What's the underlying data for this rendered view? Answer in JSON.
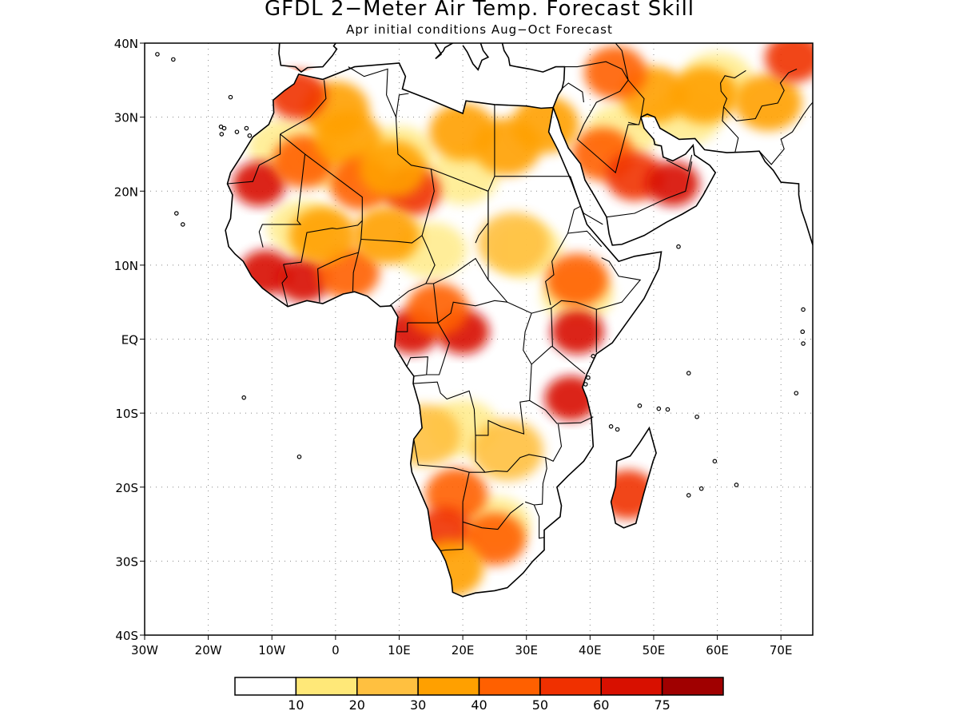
{
  "title": "GFDL 2−Meter Air Temp. Forecast Skill",
  "subtitle": "Apr initial conditions  Aug−Oct Forecast",
  "map": {
    "lon_range": [
      -30,
      75
    ],
    "lat_range": [
      -40,
      40
    ],
    "gridlines": "dotted",
    "lat_labels": [
      "40N",
      "30N",
      "20N",
      "10N",
      "EQ",
      "10S",
      "20S",
      "30S",
      "40S"
    ],
    "lon_labels": [
      "30W",
      "20W",
      "10W",
      "0",
      "10E",
      "20E",
      "30E",
      "40E",
      "50E",
      "60E",
      "70E"
    ]
  },
  "colorbar": {
    "colors": [
      "#ffffff",
      "#ffe878",
      "#ffc040",
      "#ffa000",
      "#ff6000",
      "#f03000",
      "#d81000",
      "#a00000"
    ],
    "labels": [
      "10",
      "20",
      "30",
      "40",
      "50",
      "60",
      "75"
    ]
  },
  "skill_regions": [
    {
      "lon": -12,
      "lat": 21,
      "level": 6
    },
    {
      "lon": -5,
      "lat": 24,
      "level": 4
    },
    {
      "lon": 2,
      "lat": 27,
      "level": 3
    },
    {
      "lon": 4,
      "lat": 21,
      "level": 4
    },
    {
      "lon": 12,
      "lat": 20,
      "level": 5
    },
    {
      "lon": 9,
      "lat": 23,
      "level": 3
    },
    {
      "lon": 20,
      "lat": 28,
      "level": 3
    },
    {
      "lon": 27,
      "lat": 26,
      "level": 3
    },
    {
      "lon": 0,
      "lat": 31,
      "level": 3
    },
    {
      "lon": -6,
      "lat": 33,
      "level": 5
    },
    {
      "lon": -11,
      "lat": 9,
      "level": 6
    },
    {
      "lon": -5,
      "lat": 8,
      "level": 6
    },
    {
      "lon": 2,
      "lat": 9,
      "level": 4
    },
    {
      "lon": -2,
      "lat": 14,
      "level": 3
    },
    {
      "lon": 8,
      "lat": 14,
      "level": 3
    },
    {
      "lon": 12,
      "lat": 1,
      "level": 6
    },
    {
      "lon": 20,
      "lat": 1,
      "level": 6
    },
    {
      "lon": 16,
      "lat": 4,
      "level": 4
    },
    {
      "lon": 38,
      "lat": 1,
      "level": 6
    },
    {
      "lon": 37,
      "lat": -8,
      "level": 6
    },
    {
      "lon": 38,
      "lat": 8,
      "level": 4
    },
    {
      "lon": 28,
      "lat": 13,
      "level": 2
    },
    {
      "lon": 19,
      "lat": -21,
      "level": 4
    },
    {
      "lon": 17,
      "lat": -26,
      "level": 5
    },
    {
      "lon": 25,
      "lat": -27,
      "level": 4
    },
    {
      "lon": 18,
      "lat": -31,
      "level": 3
    },
    {
      "lon": 14,
      "lat": -13,
      "level": 2
    },
    {
      "lon": 27,
      "lat": -15,
      "level": 2
    },
    {
      "lon": 46,
      "lat": -21,
      "level": 5
    },
    {
      "lon": 42,
      "lat": 25,
      "level": 4
    },
    {
      "lon": 47,
      "lat": 22,
      "level": 5
    },
    {
      "lon": 53,
      "lat": 21,
      "level": 6
    },
    {
      "lon": 33,
      "lat": 29,
      "level": 3
    },
    {
      "lon": 50,
      "lat": 33,
      "level": 3
    },
    {
      "lon": 58,
      "lat": 33,
      "level": 3
    },
    {
      "lon": 68,
      "lat": 32,
      "level": 3
    },
    {
      "lon": 44,
      "lat": 36,
      "level": 4
    },
    {
      "lon": 72,
      "lat": 38,
      "level": 5
    }
  ]
}
